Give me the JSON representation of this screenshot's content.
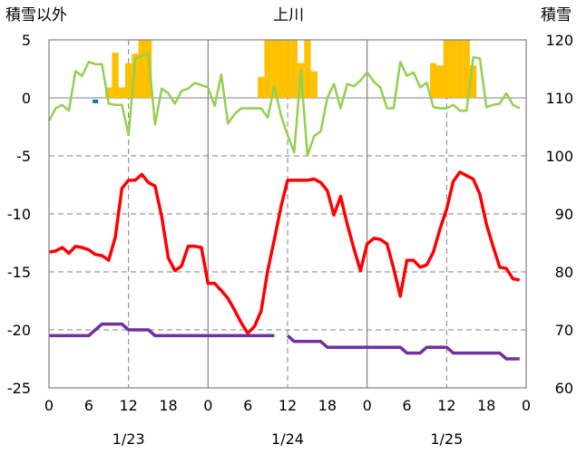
{
  "chart_data": {
    "type": "line",
    "title": "上川",
    "left_axis_title": "積雪以外",
    "right_axis_title": "積雪",
    "left_ylim": [
      -25,
      5
    ],
    "right_ylim": [
      60,
      120
    ],
    "left_ticks": [
      "5",
      "0",
      "-5",
      "-10",
      "-15",
      "-20",
      "-25"
    ],
    "right_ticks": [
      "120",
      "110",
      "100",
      "90",
      "80",
      "70",
      "60"
    ],
    "x_ticks": [
      "0",
      "6",
      "12",
      "18",
      "0",
      "6",
      "12",
      "18",
      "0",
      "6",
      "12",
      "18",
      "0"
    ],
    "date_labels": [
      "1/23",
      "1/24",
      "1/25"
    ],
    "x_range_hours": [
      0,
      72
    ],
    "grid": true,
    "colors": {
      "red": "#ff0000",
      "green": "#92d050",
      "purple": "#7030a0",
      "bar": "#ffc000",
      "blue": "#0070c0"
    },
    "series": [
      {
        "color": "red",
        "axis": "left",
        "x": [
          0,
          1,
          2,
          3,
          4,
          5,
          6,
          7,
          8,
          9,
          10,
          11,
          12,
          13,
          14,
          15,
          16,
          17,
          18,
          19,
          20,
          21,
          22,
          23,
          24,
          25,
          26,
          27,
          28,
          29,
          30,
          31,
          32,
          33,
          34,
          35,
          36,
          37,
          38,
          39,
          40,
          41,
          42,
          43,
          44,
          45,
          46,
          47,
          48,
          49,
          50,
          51,
          52,
          53,
          54,
          55,
          56,
          57,
          58,
          59,
          60,
          61,
          62,
          63,
          64,
          65,
          66,
          67,
          68,
          69,
          70,
          71
        ],
        "values": [
          -13.3,
          -13.2,
          -12.9,
          -13.4,
          -12.8,
          -12.9,
          -13.1,
          -13.5,
          -13.6,
          -14.0,
          -12.0,
          -7.8,
          -7.1,
          -7.1,
          -6.6,
          -7.3,
          -7.6,
          -10.2,
          -13.8,
          -14.9,
          -14.5,
          -12.8,
          -12.8,
          -12.9,
          -16.0,
          -16.0,
          -16.6,
          -17.3,
          -18.3,
          -19.4,
          -20.3,
          -19.7,
          -18.4,
          -14.9,
          -12.2,
          -9.4,
          -7.1,
          -7.1,
          -7.1,
          -7.1,
          -7.0,
          -7.3,
          -8.0,
          -10.1,
          -8.5,
          -10.9,
          -13.0,
          -14.9,
          -12.6,
          -12.1,
          -12.2,
          -12.6,
          -14.7,
          -17.1,
          -14.0,
          -14.0,
          -14.6,
          -14.4,
          -13.3,
          -11.3,
          -9.6,
          -7.2,
          -6.4,
          -6.7,
          -7.0,
          -8.3,
          -10.9,
          -12.8,
          -14.6,
          -14.7,
          -15.6,
          -15.7
        ]
      },
      {
        "color": "green",
        "axis": "left",
        "x": [
          0,
          1,
          2,
          3,
          4,
          5,
          6,
          7,
          8,
          9,
          10,
          11,
          12,
          13,
          14,
          15,
          16,
          17,
          18,
          19,
          20,
          21,
          22,
          23,
          24,
          25,
          26,
          27,
          28,
          29,
          30,
          31,
          32,
          33,
          34,
          35,
          36,
          37,
          38,
          39,
          40,
          41,
          42,
          43,
          44,
          45,
          46,
          47,
          48,
          49,
          50,
          51,
          52,
          53,
          54,
          55,
          56,
          57,
          58,
          59,
          60,
          61,
          62,
          63,
          64,
          65,
          66,
          67,
          68,
          69,
          70,
          71
        ],
        "values": [
          -2.0,
          -0.9,
          -0.6,
          -1.1,
          2.3,
          1.9,
          3.1,
          2.9,
          2.9,
          -0.5,
          -0.6,
          -0.6,
          -3.2,
          3.4,
          3.6,
          3.8,
          -2.3,
          0.8,
          0.4,
          -0.5,
          0.6,
          0.8,
          1.3,
          1.1,
          0.9,
          -0.7,
          2.0,
          -2.2,
          -1.4,
          -0.9,
          -0.9,
          -0.9,
          -0.9,
          -1.7,
          1.0,
          -1.5,
          -3.2,
          -4.7,
          2.4,
          -5.0,
          -3.3,
          -2.9,
          0.0,
          1.2,
          -0.9,
          1.2,
          1.0,
          1.5,
          2.2,
          1.4,
          0.9,
          -0.9,
          -0.9,
          3.1,
          1.9,
          2.2,
          0.9,
          1.3,
          -0.8,
          -0.9,
          -0.9,
          -0.6,
          -1.1,
          -1.1,
          3.5,
          3.4,
          -0.8,
          -0.6,
          -0.5,
          0.4,
          -0.6,
          -0.9
        ]
      },
      {
        "color": "purple",
        "axis": "right",
        "x": [
          0,
          1,
          2,
          3,
          4,
          5,
          6,
          7,
          8,
          9,
          10,
          11,
          12,
          13,
          14,
          15,
          16,
          17,
          18,
          19,
          20,
          21,
          22,
          23,
          24,
          25,
          26,
          27,
          28,
          29,
          30,
          31,
          32,
          33,
          34,
          null,
          36,
          37,
          38,
          39,
          40,
          41,
          42,
          43,
          44,
          45,
          46,
          47,
          48,
          49,
          50,
          51,
          52,
          53,
          54,
          55,
          56,
          57,
          58,
          59,
          60,
          61,
          62,
          63,
          64,
          65,
          66,
          67,
          68,
          69,
          70,
          71
        ],
        "values": [
          69,
          69,
          69,
          69,
          69,
          69,
          69,
          70,
          71,
          71,
          71,
          71,
          70,
          70,
          70,
          70,
          69,
          69,
          69,
          69,
          69,
          69,
          69,
          69,
          69,
          69,
          69,
          69,
          69,
          69,
          69,
          69,
          69,
          69,
          69,
          null,
          69,
          68,
          68,
          68,
          68,
          68,
          67,
          67,
          67,
          67,
          67,
          67,
          67,
          67,
          67,
          67,
          67,
          67,
          66,
          66,
          66,
          67,
          67,
          67,
          67,
          66,
          66,
          66,
          66,
          66,
          66,
          66,
          66,
          65,
          65,
          65
        ]
      }
    ],
    "bars": {
      "color": "bar",
      "axis": "left",
      "x": [
        9,
        10,
        11,
        12,
        13,
        14,
        15,
        32,
        33,
        34,
        35,
        36,
        37,
        38,
        39,
        40,
        58,
        59,
        60,
        61,
        62,
        63,
        64
      ],
      "values": [
        0.9,
        3.9,
        0.9,
        3.0,
        3.8,
        5.0,
        5.0,
        1.8,
        5.0,
        5.0,
        5.0,
        5.0,
        5.0,
        3.0,
        5.0,
        2.3,
        3.0,
        2.8,
        5.0,
        5.0,
        5.0,
        5.0,
        2.8
      ]
    },
    "markers": [
      {
        "color": "blue",
        "axis": "left",
        "x": 7,
        "value": -0.3
      }
    ]
  }
}
